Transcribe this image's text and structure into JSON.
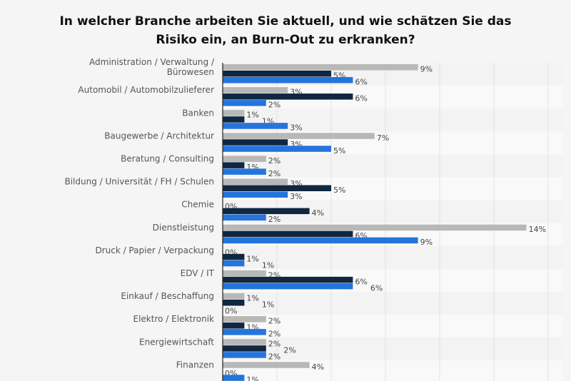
{
  "chart_data": {
    "type": "bar",
    "orientation": "horizontal",
    "title": "In welcher Branche arbeiten Sie aktuell, und wie schätzen Sie das Risiko ein, an Burn-Out zu erkranken?",
    "title_lines": [
      "In welcher Branche arbeiten Sie aktuell, und wie schätzen Sie das",
      "Risiko ein, an Burn-Out zu erkranken?"
    ],
    "categories": [
      [
        "Administration / Verwaltung /",
        "Bürowesen"
      ],
      [
        "Automobil / Automobilzulieferer"
      ],
      [
        "Banken"
      ],
      [
        "Baugewerbe / Architektur"
      ],
      [
        "Beratung / Consulting"
      ],
      [
        "Bildung / Universität / FH / Schulen"
      ],
      [
        "Chemie"
      ],
      [
        "Dienstleistung"
      ],
      [
        "Druck / Papier / Verpackung"
      ],
      [
        "EDV / IT"
      ],
      [
        "Einkauf / Beschaffung"
      ],
      [
        "Elektro / Elektronik"
      ],
      [
        "Energiewirtschaft"
      ],
      [
        "Finanzen"
      ]
    ],
    "series": [
      {
        "color": "#b8b8b8",
        "values": [
          9,
          3,
          1,
          7,
          2,
          3,
          0,
          14,
          0,
          2,
          1,
          2,
          2,
          4
        ]
      },
      {
        "color": "#0f2740",
        "values": [
          5,
          6,
          1,
          3,
          1,
          5,
          4,
          6,
          1,
          6,
          1,
          1,
          2,
          0
        ]
      },
      {
        "color": "#2474dc",
        "values": [
          6,
          2,
          3,
          5,
          2,
          3,
          2,
          9,
          1,
          6,
          0,
          2,
          2,
          1
        ]
      }
    ],
    "value_suffix": "%",
    "xlim": [
      0,
      15
    ],
    "grid": true,
    "gridlines": [
      0,
      2.5,
      5,
      7.5,
      10,
      12.5,
      15
    ]
  }
}
